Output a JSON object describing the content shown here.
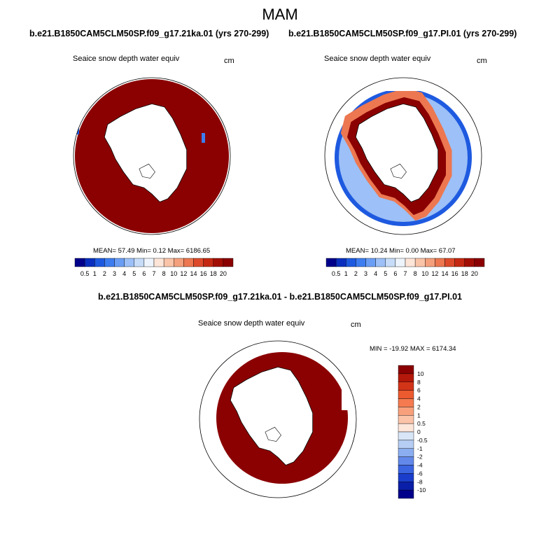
{
  "figure": {
    "season_title": "MAM",
    "diff_title": "b.e21.B1850CAM5CLM50SP.f09_g17.21ka.01 - b.e21.B1850CAM5CLM50SP.f09_g17.PI.01"
  },
  "panels": [
    {
      "run": "b.e21.B1850CAM5CLM50SP.f09_g17.21ka.01 (yrs 270-299)",
      "variable": "Seaice snow depth water equiv",
      "units": "cm",
      "stats": "MEAN=  57.49  Min=   0.12  Max= 6186.65",
      "ice_extent": "saturated"
    },
    {
      "run": "b.e21.B1850CAM5CLM50SP.f09_g17.PI.01 (yrs 270-299)",
      "variable": "Seaice snow depth water equiv",
      "units": "cm",
      "stats": "MEAN=  10.24  Min=   0.00  Max=  67.07",
      "ice_extent": "ring"
    },
    {
      "variable": "Seaice snow depth water equiv",
      "units": "cm",
      "stats": "MIN = -19.92 MAX = 6174.34",
      "ice_extent": "diff"
    }
  ],
  "colorbar_abs": {
    "labels": [
      "0.5",
      "1",
      "2",
      "3",
      "4",
      "5",
      "6",
      "7",
      "8",
      "10",
      "12",
      "14",
      "16",
      "18",
      "20"
    ],
    "colors": [
      "#00008b",
      "#0a2fbf",
      "#1e5ae0",
      "#3d7df0",
      "#6a9ef5",
      "#9cc0f7",
      "#c6dcf8",
      "#eef4fb",
      "#fde5d8",
      "#f9c4a8",
      "#f4a07c",
      "#ec7751",
      "#dd4a2b",
      "#c52812",
      "#a30e04",
      "#8b0000"
    ]
  },
  "colorbar_diff": {
    "labels": [
      "10",
      "8",
      "6",
      "4",
      "2",
      "1",
      "0.5",
      "0",
      "-0.5",
      "-1",
      "-2",
      "-4",
      "-6",
      "-8",
      "-10"
    ],
    "colors": [
      "#8b0000",
      "#b3180a",
      "#d23418",
      "#ec5a2f",
      "#f57a4f",
      "#f8a07c",
      "#fbc3a8",
      "#fde6da",
      "#d8e6f8",
      "#b6cdf4",
      "#8aaef0",
      "#6289ea",
      "#3b64e0",
      "#1a3ecb",
      "#0a1fa8",
      "#00008b"
    ]
  },
  "colors": {
    "ice_max": "#8b0000",
    "land": "#ffffff",
    "coast": "#000000"
  }
}
